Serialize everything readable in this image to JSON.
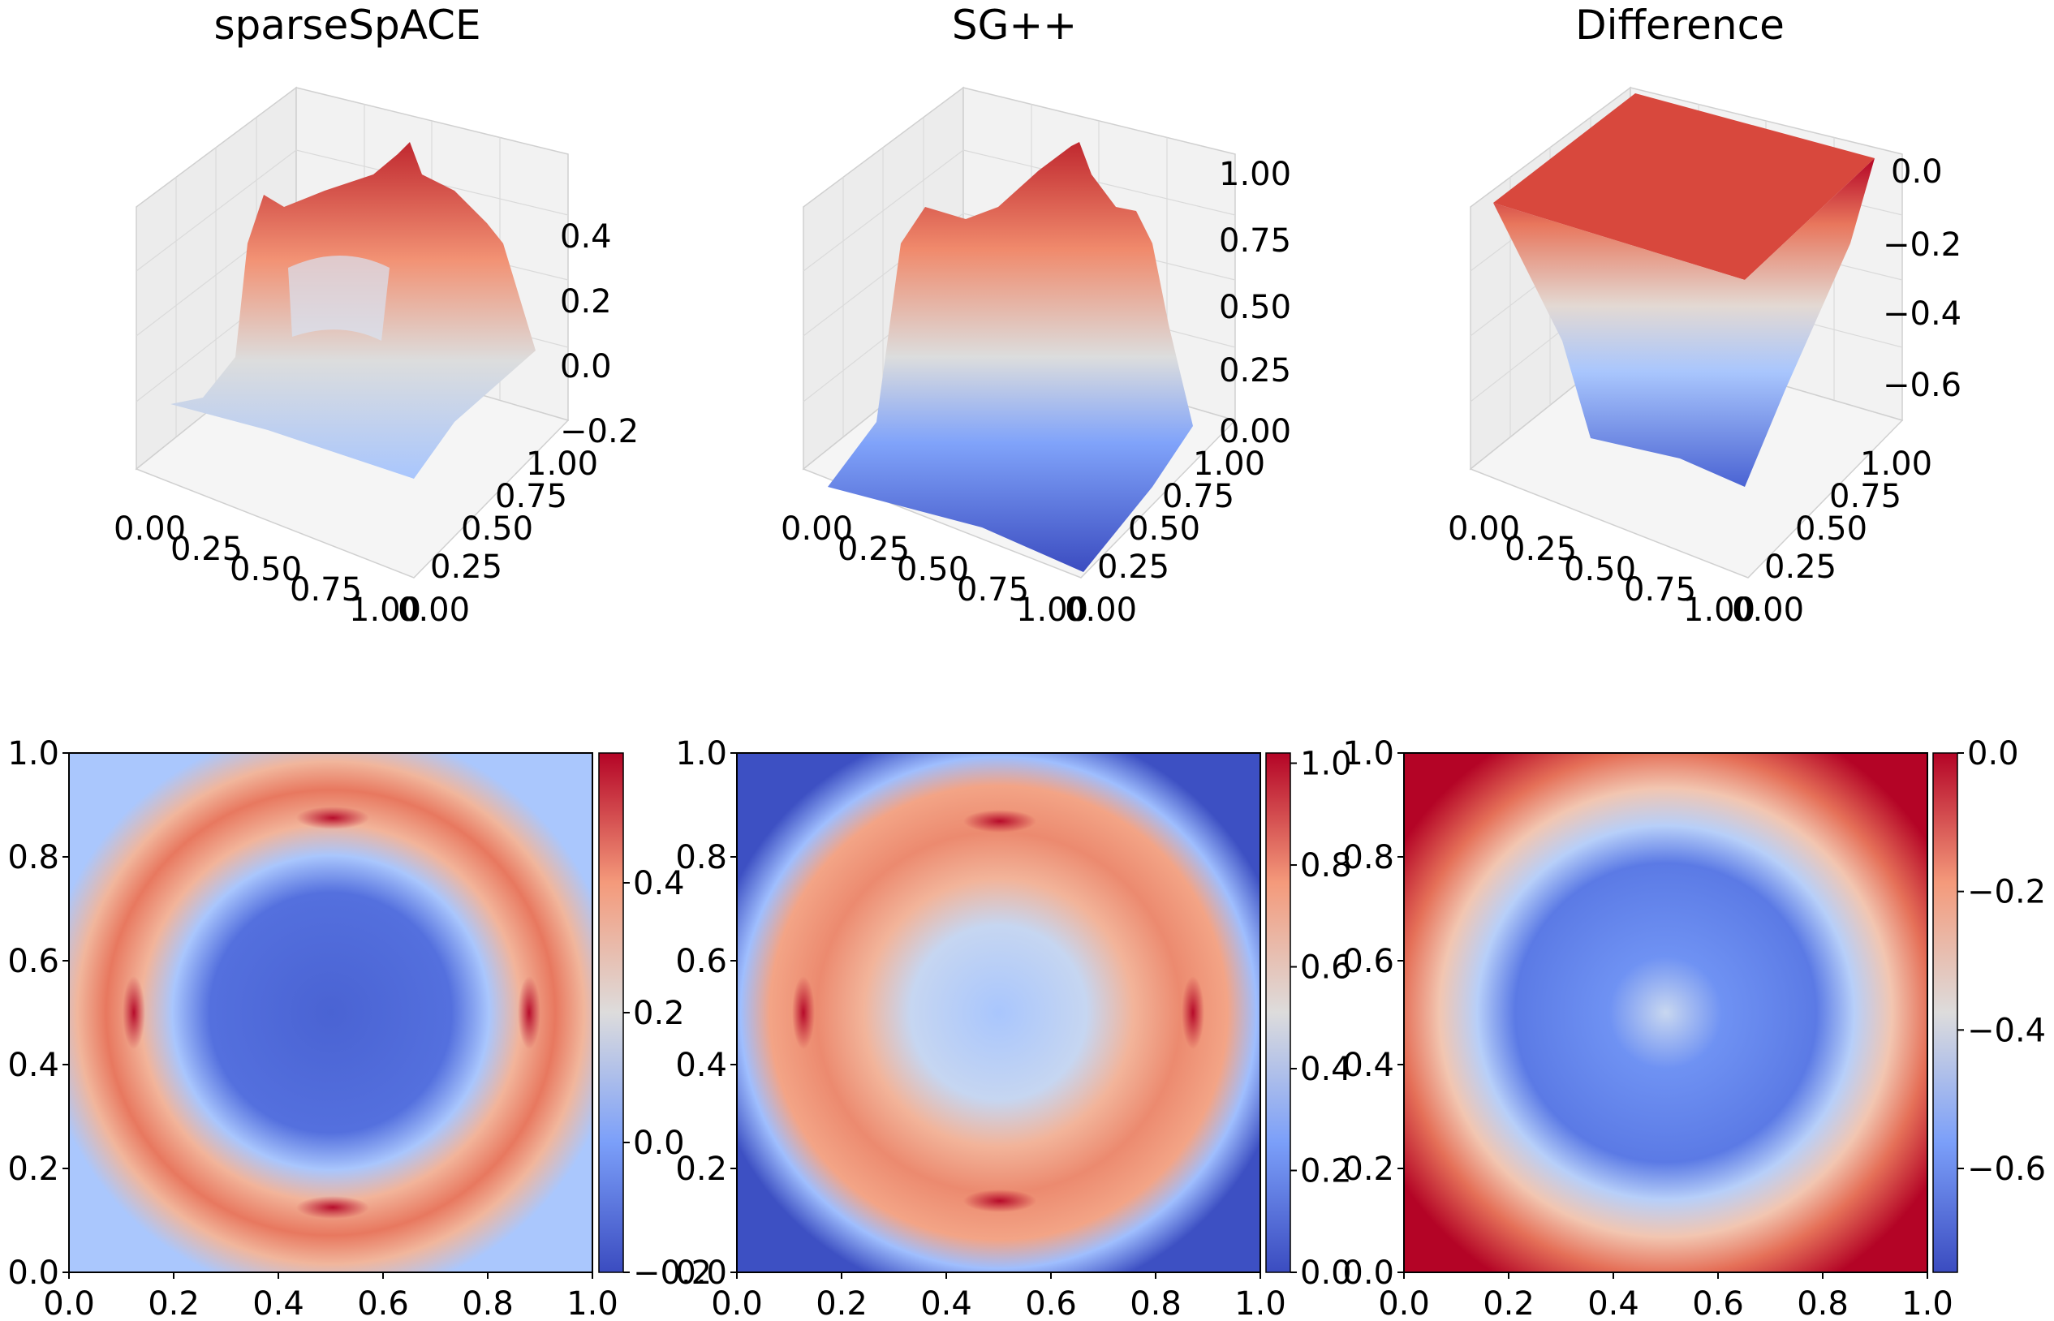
{
  "chart_data": [
    {
      "type": "surface",
      "title": "sparseSpACE",
      "x_ticks": [
        "0.00",
        "0.25",
        "0.50",
        "0.75",
        "1.00"
      ],
      "y_ticks": [
        "0.00",
        "0.25",
        "0.50",
        "0.75",
        "1.00"
      ],
      "z_ticks": [
        "−0.2",
        "0.0",
        "0.2",
        "0.4"
      ],
      "x_range": [
        0,
        1
      ],
      "y_range": [
        0,
        1
      ],
      "z_range": [
        -0.2,
        0.6
      ],
      "colormap": "coolwarm",
      "grid": true
    },
    {
      "type": "surface",
      "title": "SG++",
      "x_ticks": [
        "0.00",
        "0.25",
        "0.50",
        "0.75",
        "1.00"
      ],
      "y_ticks": [
        "0.00",
        "0.25",
        "0.50",
        "0.75",
        "1.00"
      ],
      "z_ticks": [
        "0.00",
        "0.25",
        "0.50",
        "0.75",
        "1.00"
      ],
      "x_range": [
        0,
        1
      ],
      "y_range": [
        0,
        1
      ],
      "z_range": [
        0,
        1.05
      ],
      "colormap": "coolwarm",
      "grid": true
    },
    {
      "type": "surface",
      "title": "Difference",
      "x_ticks": [
        "0.00",
        "0.25",
        "0.50",
        "0.75",
        "1.00"
      ],
      "y_ticks": [
        "0.00",
        "0.25",
        "0.50",
        "0.75",
        "1.00"
      ],
      "z_ticks": [
        "0.0",
        "−0.2",
        "−0.4",
        "−0.6"
      ],
      "x_range": [
        0,
        1
      ],
      "y_range": [
        0,
        1
      ],
      "z_range": [
        -0.75,
        0
      ],
      "colormap": "coolwarm",
      "grid": true
    },
    {
      "type": "heatmap",
      "x_ticks": [
        "0.0",
        "0.2",
        "0.4",
        "0.6",
        "0.8",
        "1.0"
      ],
      "y_ticks": [
        "0.0",
        "0.2",
        "0.4",
        "0.6",
        "0.8",
        "1.0"
      ],
      "colorbar_ticks": [
        "−0.2",
        "0.0",
        "0.2",
        "0.4"
      ],
      "colorbar_range": [
        -0.2,
        0.6
      ],
      "colormap": "coolwarm"
    },
    {
      "type": "heatmap",
      "x_ticks": [
        "0.0",
        "0.2",
        "0.4",
        "0.6",
        "0.8",
        "1.0"
      ],
      "y_ticks": [
        "0.0",
        "0.2",
        "0.4",
        "0.6",
        "0.8",
        "1.0"
      ],
      "colorbar_ticks": [
        "0.0",
        "0.2",
        "0.4",
        "0.6",
        "0.8",
        "1.0"
      ],
      "colorbar_range": [
        0,
        1.02
      ],
      "colormap": "coolwarm"
    },
    {
      "type": "heatmap",
      "x_ticks": [
        "0.0",
        "0.2",
        "0.4",
        "0.6",
        "0.8",
        "1.0"
      ],
      "y_ticks": [
        "0.0",
        "0.2",
        "0.4",
        "0.6",
        "0.8",
        "1.0"
      ],
      "colorbar_ticks": [
        "−0.6",
        "−0.4",
        "−0.2",
        "0.0"
      ],
      "colorbar_range": [
        -0.75,
        0
      ],
      "colormap": "coolwarm"
    }
  ]
}
